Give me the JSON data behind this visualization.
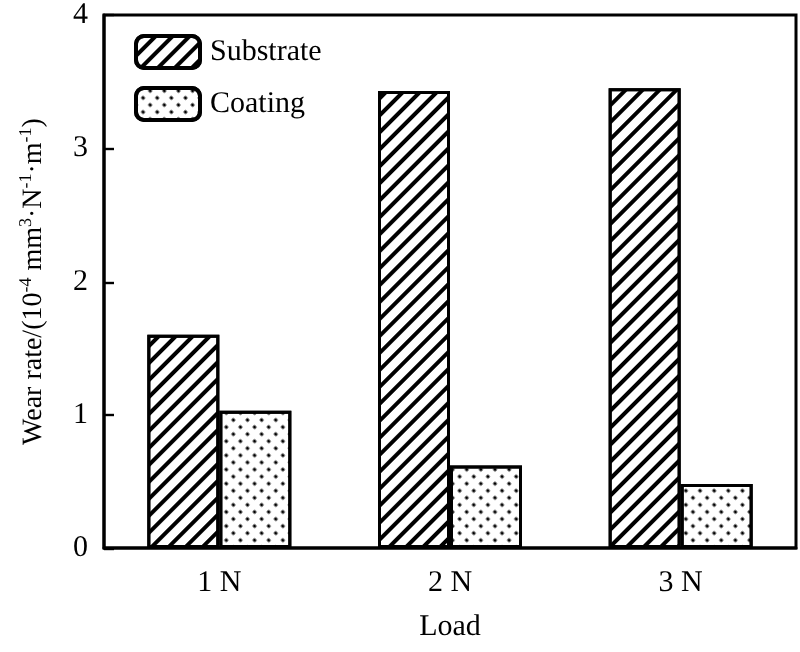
{
  "chart_data": {
    "type": "bar",
    "xlabel": "Load",
    "ylabel": "Wear rate/(10$^{-4}$ mm$^{3}$·N$^{-1}$·m$^{-1}$)",
    "categories": [
      "1 N",
      "2 N",
      "3 N"
    ],
    "series": [
      {
        "name": "Substrate",
        "color": "#ffffff",
        "values": [
          1.6,
          3.43,
          3.45
        ]
      },
      {
        "name": "Coating",
        "color": "#ffffff",
        "values": [
          1.03,
          0.62,
          0.48
        ]
      }
    ],
    "ylim": [
      0,
      4
    ],
    "yticks": [
      0,
      1,
      2,
      3,
      4
    ],
    "grid": false,
    "legend": "top left"
  }
}
